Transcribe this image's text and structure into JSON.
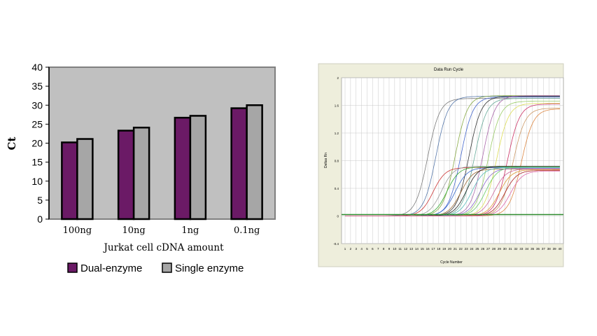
{
  "chart_data": [
    {
      "type": "bar",
      "title": "",
      "xlabel": "Jurkat cell cDNA amount",
      "ylabel": "Ct",
      "ylim": [
        0,
        40
      ],
      "yticks": [
        0,
        5,
        10,
        15,
        20,
        25,
        30,
        35,
        40
      ],
      "categories": [
        "100ng",
        "10ng",
        "1ng",
        "0.1ng"
      ],
      "series": [
        {
          "name": "Dual-enzyme",
          "values": [
            20.2,
            23.3,
            26.7,
            29.2
          ],
          "color": "#6b1a66"
        },
        {
          "name": "Single enzyme",
          "values": [
            21.1,
            24.1,
            27.2,
            30.0
          ],
          "color": "#a6a6a6"
        }
      ],
      "plot_background": "#c0c0c0",
      "legend_position": "bottom",
      "grid": false
    },
    {
      "type": "line",
      "title": "Data Run Cycle",
      "xlabel": "Cycle Number",
      "ylabel": "Deltas Rn",
      "yticks": [
        "2",
        "1.6",
        "1.2",
        "0.8",
        "0.4",
        "0",
        "-0.4"
      ],
      "xticks": [
        "1",
        "2",
        "3",
        "4",
        "5",
        "6",
        "7",
        "8",
        "9",
        "10",
        "11",
        "12",
        "13",
        "14",
        "15",
        "16",
        "17",
        "18",
        "19",
        "20",
        "21",
        "22",
        "23",
        "24",
        "25",
        "26",
        "27",
        "28",
        "29",
        "30",
        "31",
        "32",
        "33",
        "34",
        "35",
        "36",
        "37",
        "38",
        "39",
        "40"
      ],
      "threshold": 0.02,
      "threshold_color": "#2e8b2e",
      "plot_background": "#ffffff",
      "frame_background": "#eeeedc",
      "grid": true,
      "groups": [
        {
          "plateau": 1.72,
          "curves": [
            {
              "ct": 13.5,
              "plateau": 1.7,
              "color": "#7a7a7a"
            },
            {
              "ct": 15.0,
              "plateau": 1.73,
              "color": "#5577aa"
            },
            {
              "ct": 18.5,
              "plateau": 1.74,
              "color": "#88aa44"
            },
            {
              "ct": 19.5,
              "plateau": 1.72,
              "color": "#4466cc"
            },
            {
              "ct": 21.0,
              "plateau": 1.73,
              "color": "#333333"
            },
            {
              "ct": 22.0,
              "plateau": 1.7,
              "color": "#66aa99"
            },
            {
              "ct": 23.5,
              "plateau": 1.74,
              "color": "#aa66aa"
            },
            {
              "ct": 24.5,
              "plateau": 1.66,
              "color": "#99cc66"
            },
            {
              "ct": 26.0,
              "plateau": 1.63,
              "color": "#dddd55"
            },
            {
              "ct": 28.0,
              "plateau": 1.62,
              "color": "#cc3366"
            },
            {
              "ct": 29.0,
              "plateau": 1.56,
              "color": "#cc9966"
            },
            {
              "ct": 30.5,
              "plateau": 1.55,
              "color": "#dd8844"
            }
          ]
        },
        {
          "plateau": 0.7,
          "curves": [
            {
              "ct": 14.5,
              "plateau": 0.7,
              "color": "#cc3333"
            },
            {
              "ct": 16.0,
              "plateau": 0.72,
              "color": "#999999"
            },
            {
              "ct": 17.0,
              "plateau": 0.71,
              "color": "#33aa33"
            },
            {
              "ct": 18.5,
              "plateau": 0.7,
              "color": "#3366cc"
            },
            {
              "ct": 19.5,
              "plateau": 0.68,
              "color": "#996633"
            },
            {
              "ct": 20.5,
              "plateau": 0.72,
              "color": "#222222"
            },
            {
              "ct": 21.5,
              "plateau": 0.7,
              "color": "#55bbbb"
            },
            {
              "ct": 23.0,
              "plateau": 0.69,
              "color": "#8866cc"
            },
            {
              "ct": 24.0,
              "plateau": 0.71,
              "color": "#66cc66"
            },
            {
              "ct": 25.5,
              "plateau": 0.68,
              "color": "#cc6699"
            },
            {
              "ct": 26.5,
              "plateau": 0.67,
              "color": "#dd9933"
            },
            {
              "ct": 27.5,
              "plateau": 0.66,
              "color": "#aa2222"
            },
            {
              "ct": 28.5,
              "plateau": 0.65,
              "color": "#dd66aa"
            }
          ]
        }
      ]
    }
  ]
}
